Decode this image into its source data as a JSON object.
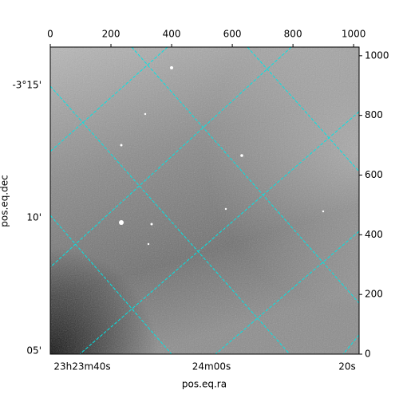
{
  "chart_data": {
    "type": "image",
    "x_label": "pos.eq.ra",
    "y_label": "pos.eq.dec",
    "xlim": [
      0,
      1018
    ],
    "ylim": [
      0,
      1029
    ],
    "xticks": [
      0,
      200,
      400,
      600,
      800,
      1000
    ],
    "yticks": [
      0,
      200,
      400,
      600,
      800,
      1000
    ],
    "ra_ticks": [
      "23h23m40s",
      "24m00s",
      "20s"
    ],
    "dec_ticks": [
      "-3°15'",
      "10'",
      "05'"
    ],
    "grid_color": "#00e5e5"
  }
}
